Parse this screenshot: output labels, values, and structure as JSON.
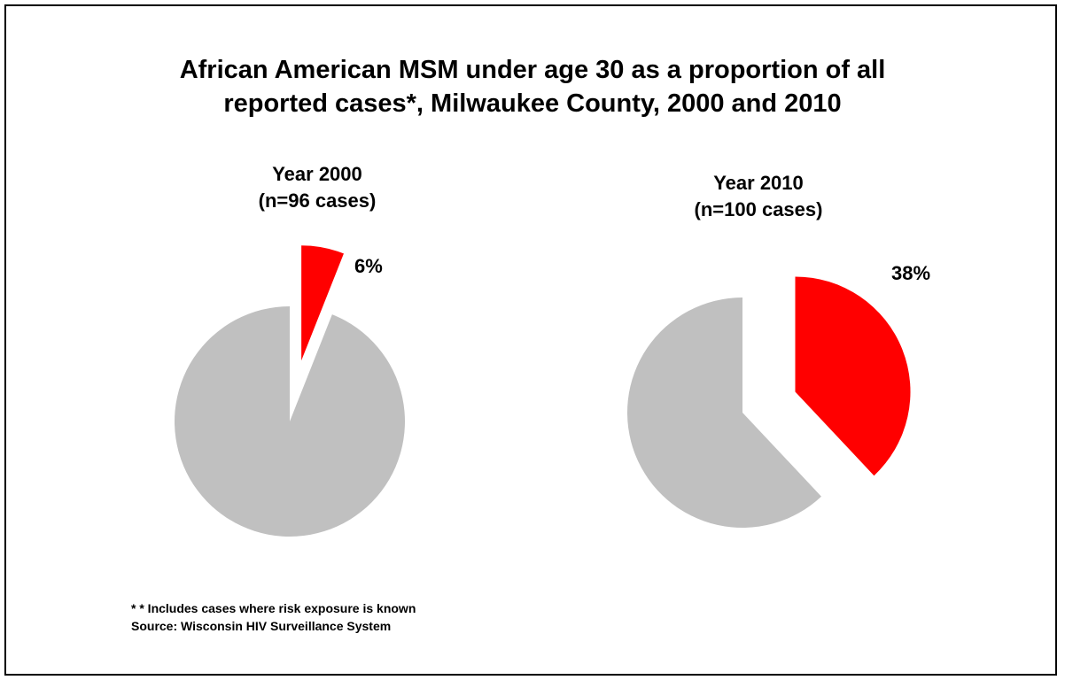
{
  "title_lines": [
    "African American MSM under age 30 as a proportion of all",
    "reported cases*, Milwaukee County, 2000 and 2010"
  ],
  "colors": {
    "highlight": "#ff0000",
    "rest": "#c0c0c0"
  },
  "chart_data": [
    {
      "type": "pie",
      "title_lines": [
        "Year 2000",
        "(n=96 cases)"
      ],
      "slices": [
        {
          "label": "",
          "value": 6,
          "display": "6%",
          "color": "#ff0000",
          "exploded": true
        },
        {
          "label": "",
          "value": 94,
          "display": "",
          "color": "#c0c0c0",
          "exploded": false
        }
      ]
    },
    {
      "type": "pie",
      "title_lines": [
        "Year 2010",
        "(n=100 cases)"
      ],
      "slices": [
        {
          "label": "",
          "value": 38,
          "display": "38%",
          "color": "#ff0000",
          "exploded": true
        },
        {
          "label": "",
          "value": 62,
          "display": "",
          "color": "#c0c0c0",
          "exploded": false
        }
      ]
    }
  ],
  "footnote_lines": [
    "* * Includes cases where risk exposure is known",
    "Source: Wisconsin HIV Surveillance System"
  ]
}
